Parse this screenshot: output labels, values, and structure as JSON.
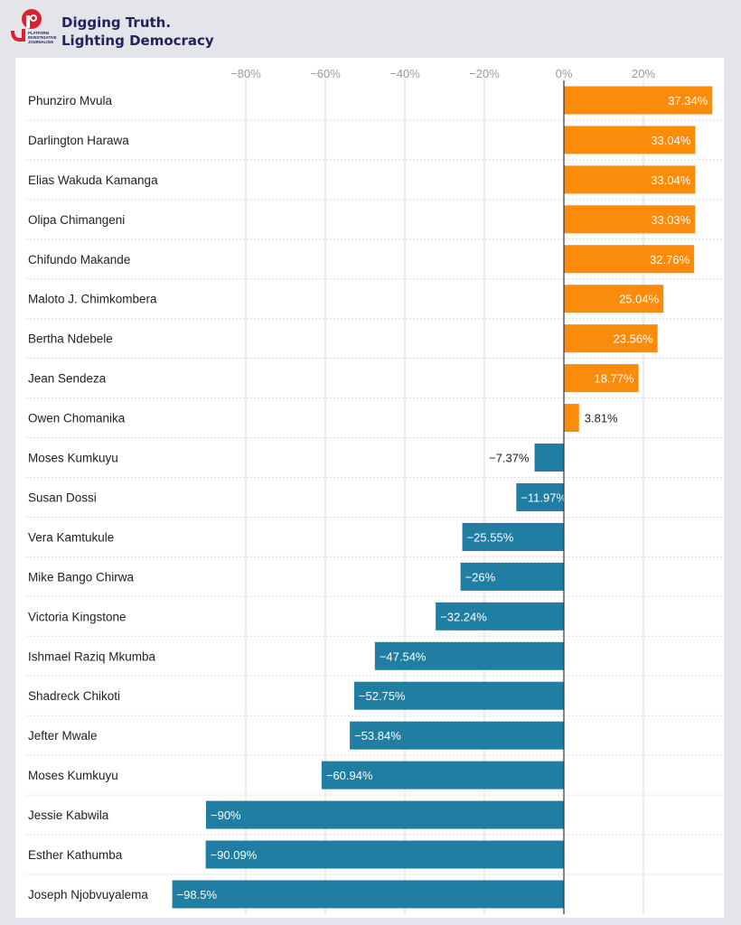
{
  "header": {
    "logo_text": "PLATFORM for INVESTIGATIVE JOURNALISM",
    "tagline_line1": "Digging Truth.",
    "tagline_line2": "Lighting Democracy"
  },
  "colors": {
    "positive": "#fb8b0b",
    "negative": "#1f7ea1",
    "grid": "#d9d9d9",
    "axis": "#333333"
  },
  "chart_data": {
    "type": "bar",
    "orientation": "horizontal",
    "title": "",
    "xlabel": "",
    "ylabel": "",
    "xlim": [
      -100,
      40
    ],
    "xticks": [
      -80,
      -60,
      -40,
      -20,
      0,
      20
    ],
    "xtick_labels": [
      "−80%",
      "−60%",
      "−40%",
      "−20%",
      "0%",
      "20%"
    ],
    "categories": [
      "Phunziro Mvula",
      "Darlington Harawa",
      "Elias Wakuda Kamanga",
      "Olipa Chimangeni",
      "Chifundo Makande",
      "Maloto J. Chimkombera",
      "Bertha Ndebele",
      "Jean Sendeza",
      "Owen Chomanika",
      "Moses Kumkuyu",
      "Susan Dossi",
      "Vera Kamtukule",
      "Mike Bango Chirwa",
      "Victoria Kingstone",
      "Ishmael Raziq Mkumba",
      "Shadreck Chikoti",
      "Jefter Mwale",
      "Moses Kumkuyu",
      "Jessie Kabwila",
      "Esther Kathumba",
      "Joseph Njobvuyalema"
    ],
    "values": [
      37.34,
      33.04,
      33.04,
      33.03,
      32.76,
      25.04,
      23.56,
      18.77,
      3.81,
      -7.37,
      -11.97,
      -25.55,
      -26,
      -32.24,
      -47.54,
      -52.75,
      -53.84,
      -60.94,
      -90,
      -90.09,
      -98.5
    ],
    "value_labels": [
      "37.34%",
      "33.04%",
      "33.04%",
      "33.03%",
      "32.76%",
      "25.04%",
      "23.56%",
      "18.77%",
      "3.81%",
      "−7.37%",
      "−11.97%",
      "−25.55%",
      "−26%",
      "−32.24%",
      "−47.54%",
      "−52.75%",
      "−53.84%",
      "−60.94%",
      "−90%",
      "−90.09%",
      "−98.5%"
    ]
  }
}
